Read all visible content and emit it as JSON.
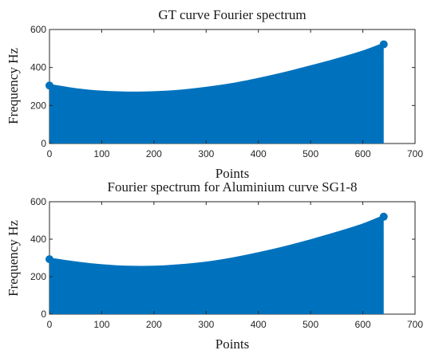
{
  "chart_data": [
    {
      "type": "area",
      "title": "GT curve Fourier spectrum",
      "xlabel": "Points",
      "ylabel": "Frequency Hz",
      "xlim": [
        0,
        700
      ],
      "ylim": [
        0,
        600
      ],
      "xticks": [
        0,
        100,
        200,
        300,
        400,
        500,
        600,
        700
      ],
      "yticks": [
        0,
        200,
        400,
        600
      ],
      "grid": false,
      "color": "#0072BD",
      "x": [
        0,
        50,
        100,
        150,
        200,
        250,
        300,
        350,
        400,
        450,
        500,
        550,
        600,
        640
      ],
      "values": [
        305,
        283,
        270,
        265,
        267,
        275,
        290,
        310,
        337,
        368,
        403,
        440,
        481,
        522
      ]
    },
    {
      "type": "area",
      "title": "Fourier spectrum for Aluminium curve SG1-8",
      "xlabel": "Points",
      "ylabel": "Frequency Hz",
      "xlim": [
        0,
        700
      ],
      "ylim": [
        0,
        600
      ],
      "xticks": [
        0,
        100,
        200,
        300,
        400,
        500,
        600,
        700
      ],
      "yticks": [
        0,
        200,
        400,
        600
      ],
      "grid": false,
      "color": "#0072BD",
      "x": [
        0,
        50,
        100,
        150,
        200,
        250,
        300,
        350,
        400,
        450,
        500,
        550,
        600,
        640
      ],
      "values": [
        293,
        273,
        258,
        250,
        250,
        258,
        272,
        294,
        322,
        354,
        391,
        431,
        475,
        520
      ]
    }
  ]
}
